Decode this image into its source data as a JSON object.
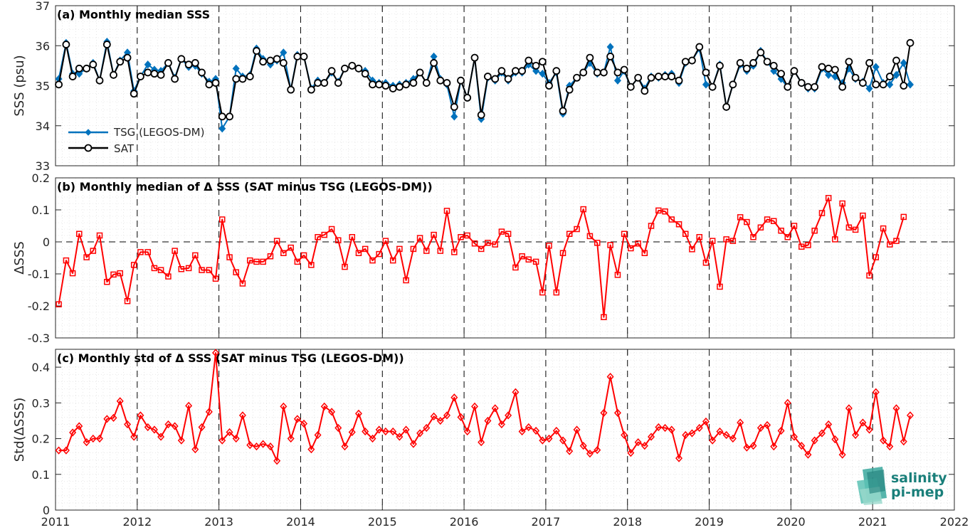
{
  "chart_data": [
    {
      "type": "line",
      "title": "(a) Monthly median SSS",
      "ylabel": "SSS (psu)",
      "xlim": [
        2011,
        2022
      ],
      "ylim": [
        33,
        37
      ],
      "xticks": [
        "2011",
        "2012",
        "2013",
        "2014",
        "2015",
        "2016",
        "2017",
        "2018",
        "2019",
        "2020",
        "2021",
        "2022"
      ],
      "yticks": [
        "33",
        "34",
        "35",
        "36",
        "37"
      ],
      "grid": true,
      "legend_position": "bottom-left",
      "x": [
        2011.04,
        2011.13,
        2011.21,
        2011.29,
        2011.38,
        2011.46,
        2011.54,
        2011.63,
        2011.71,
        2011.79,
        2011.88,
        2011.96,
        2012.04,
        2012.13,
        2012.21,
        2012.29,
        2012.38,
        2012.46,
        2012.54,
        2012.63,
        2012.71,
        2012.79,
        2012.88,
        2012.96,
        2013.04,
        2013.13,
        2013.21,
        2013.29,
        2013.38,
        2013.46,
        2013.54,
        2013.63,
        2013.71,
        2013.79,
        2013.88,
        2013.96,
        2014.04,
        2014.13,
        2014.21,
        2014.29,
        2014.38,
        2014.46,
        2014.54,
        2014.63,
        2014.71,
        2014.79,
        2014.88,
        2014.96,
        2015.04,
        2015.13,
        2015.21,
        2015.29,
        2015.38,
        2015.46,
        2015.54,
        2015.63,
        2015.71,
        2015.79,
        2015.88,
        2015.96,
        2016.04,
        2016.13,
        2016.21,
        2016.29,
        2016.38,
        2016.46,
        2016.54,
        2016.63,
        2016.71,
        2016.79,
        2016.88,
        2016.96,
        2017.04,
        2017.13,
        2017.21,
        2017.29,
        2017.38,
        2017.46,
        2017.54,
        2017.63,
        2017.71,
        2017.79,
        2017.88,
        2017.96,
        2018.04,
        2018.13,
        2018.21,
        2018.29,
        2018.38,
        2018.46,
        2018.54,
        2018.63,
        2018.71,
        2018.79,
        2018.88,
        2018.96,
        2019.04,
        2019.13,
        2019.21,
        2019.29,
        2019.38,
        2019.46,
        2019.54,
        2019.63,
        2019.71,
        2019.79,
        2019.88,
        2019.96,
        2020.04,
        2020.13,
        2020.21,
        2020.29,
        2020.38,
        2020.46,
        2020.54,
        2020.63,
        2020.71,
        2020.79,
        2020.88,
        2020.96,
        2021.04,
        2021.13,
        2021.21,
        2021.29,
        2021.38,
        2021.46
      ],
      "series": [
        {
          "name": "TSG (LEGOS-DM)",
          "color": "#0072BD",
          "marker": "diamond",
          "values": [
            35.17,
            36.07,
            35.3,
            35.3,
            35.43,
            35.57,
            35.13,
            36.1,
            35.27,
            35.63,
            35.83,
            34.87,
            35.23,
            35.53,
            35.4,
            35.37,
            35.57,
            35.2,
            35.67,
            35.47,
            35.5,
            35.3,
            35.1,
            35.17,
            33.93,
            34.23,
            35.43,
            35.23,
            35.27,
            35.93,
            35.67,
            35.53,
            35.63,
            35.83,
            34.9,
            35.77,
            35.73,
            34.93,
            35.13,
            35.07,
            35.33,
            35.1,
            35.43,
            35.5,
            35.43,
            35.37,
            35.13,
            35.07,
            35.07,
            35.0,
            35.03,
            35.07,
            35.17,
            35.33,
            35.07,
            35.73,
            35.17,
            35.03,
            34.23,
            35.13,
            34.7,
            35.7,
            34.17,
            35.2,
            35.13,
            35.33,
            35.13,
            35.33,
            35.33,
            35.53,
            35.37,
            35.3,
            35.07,
            35.33,
            34.3,
            35.0,
            35.2,
            35.33,
            35.57,
            35.3,
            35.33,
            35.97,
            35.13,
            35.37,
            34.97,
            35.2,
            34.93,
            35.23,
            35.2,
            35.27,
            35.3,
            35.07,
            35.57,
            35.63,
            35.93,
            35.03,
            34.97,
            35.53,
            34.47,
            35.03,
            35.53,
            35.37,
            35.5,
            35.87,
            35.6,
            35.37,
            35.17,
            34.97,
            35.37,
            35.07,
            34.93,
            34.93,
            35.43,
            35.27,
            35.23,
            35.07,
            35.43,
            35.17,
            35.1,
            34.93,
            35.47,
            35.07,
            35.03,
            35.27,
            35.57,
            35.03
          ]
        },
        {
          "name": "SAT",
          "color": "#000000",
          "marker": "circle",
          "values": [
            35.03,
            36.03,
            35.23,
            35.43,
            35.43,
            35.53,
            35.13,
            36.03,
            35.27,
            35.6,
            35.7,
            34.8,
            35.23,
            35.33,
            35.3,
            35.27,
            35.57,
            35.17,
            35.67,
            35.53,
            35.57,
            35.33,
            35.03,
            35.07,
            34.23,
            34.23,
            35.17,
            35.17,
            35.23,
            35.87,
            35.6,
            35.63,
            35.67,
            35.57,
            34.9,
            35.73,
            35.73,
            34.9,
            35.07,
            35.07,
            35.37,
            35.07,
            35.43,
            35.5,
            35.43,
            35.3,
            35.03,
            35.03,
            35.0,
            34.93,
            34.97,
            35.03,
            35.07,
            35.33,
            35.07,
            35.57,
            35.13,
            35.07,
            34.47,
            35.13,
            34.7,
            35.7,
            34.27,
            35.23,
            35.17,
            35.37,
            35.17,
            35.37,
            35.37,
            35.63,
            35.5,
            35.6,
            35.0,
            35.37,
            34.37,
            34.9,
            35.2,
            35.33,
            35.7,
            35.33,
            35.33,
            35.73,
            35.33,
            35.4,
            34.97,
            35.2,
            34.87,
            35.2,
            35.23,
            35.23,
            35.23,
            35.13,
            35.6,
            35.63,
            35.97,
            35.33,
            34.97,
            35.5,
            34.47,
            35.03,
            35.57,
            35.43,
            35.57,
            35.83,
            35.6,
            35.5,
            35.3,
            34.97,
            35.37,
            35.07,
            34.97,
            34.97,
            35.47,
            35.43,
            35.4,
            34.97,
            35.6,
            35.2,
            35.07,
            35.57,
            35.03,
            35.03,
            35.23,
            35.63,
            35.0,
            36.07
          ]
        }
      ]
    },
    {
      "type": "line",
      "title": "(b) Monthly median of Δ SSS (SAT minus TSG (LEGOS-DM))",
      "ylabel": "ΔSSS",
      "xlim": [
        2011,
        2022
      ],
      "ylim": [
        -0.3,
        0.2
      ],
      "xticks": [
        "2011",
        "2012",
        "2013",
        "2014",
        "2015",
        "2016",
        "2017",
        "2018",
        "2019",
        "2020",
        "2021",
        "2022"
      ],
      "yticks": [
        "-0.3",
        "-0.2",
        "-0.1",
        "0",
        "0.1",
        "0.2"
      ],
      "grid": true,
      "series": [
        {
          "name": "",
          "color": "#FF0000",
          "marker": "square",
          "values": [
            -0.195,
            -0.058,
            -0.098,
            0.025,
            -0.048,
            -0.028,
            0.02,
            -0.125,
            -0.102,
            -0.098,
            -0.185,
            -0.072,
            -0.032,
            -0.032,
            -0.082,
            -0.088,
            -0.108,
            -0.028,
            -0.085,
            -0.082,
            -0.042,
            -0.088,
            -0.088,
            -0.115,
            0.07,
            -0.048,
            -0.095,
            -0.13,
            -0.058,
            -0.062,
            -0.062,
            -0.045,
            0.003,
            -0.035,
            -0.018,
            -0.062,
            -0.042,
            -0.072,
            0.015,
            0.022,
            0.04,
            0.005,
            -0.078,
            0.015,
            -0.035,
            -0.022,
            -0.058,
            -0.038,
            0.003,
            -0.058,
            -0.022,
            -0.12,
            -0.022,
            0.012,
            -0.028,
            0.022,
            -0.028,
            0.097,
            -0.032,
            0.015,
            0.02,
            -0.005,
            -0.022,
            -0.003,
            -0.008,
            0.032,
            0.025,
            -0.08,
            -0.045,
            -0.055,
            -0.062,
            -0.158,
            -0.012,
            -0.158,
            -0.035,
            0.025,
            0.04,
            0.102,
            0.018,
            -0.003,
            -0.235,
            -0.01,
            -0.103,
            0.025,
            -0.02,
            -0.005,
            -0.035,
            0.05,
            0.098,
            0.095,
            0.07,
            0.055,
            0.025,
            -0.023,
            0.015,
            -0.065,
            0.003,
            -0.14,
            0.008,
            0.003,
            0.077,
            0.062,
            0.015,
            0.045,
            0.07,
            0.065,
            0.035,
            0.015,
            0.05,
            -0.015,
            -0.01,
            0.035,
            0.09,
            0.137,
            0.008,
            0.12,
            0.045,
            0.038,
            0.082,
            -0.105,
            -0.048,
            0.042,
            -0.008,
            0.003,
            0.078
          ]
        }
      ]
    },
    {
      "type": "line",
      "title": "(c) Monthly std of Δ SSS (SAT minus TSG (LEGOS-DM))",
      "ylabel": "Std(ΔSSS)",
      "xlim": [
        2011,
        2022
      ],
      "ylim": [
        0,
        0.45
      ],
      "xticks": [
        "2011",
        "2012",
        "2013",
        "2014",
        "2015",
        "2016",
        "2017",
        "2018",
        "2019",
        "2020",
        "2021",
        "2022"
      ],
      "yticks": [
        "0",
        "0.1",
        "0.2",
        "0.3",
        "0.4"
      ],
      "grid": true,
      "series": [
        {
          "name": "",
          "color": "#FF0000",
          "marker": "diamond",
          "values": [
            0.167,
            0.167,
            0.217,
            0.235,
            0.19,
            0.2,
            0.2,
            0.255,
            0.258,
            0.305,
            0.24,
            0.205,
            0.265,
            0.232,
            0.225,
            0.205,
            0.24,
            0.235,
            0.195,
            0.292,
            0.17,
            0.232,
            0.275,
            0.44,
            0.195,
            0.218,
            0.2,
            0.265,
            0.182,
            0.178,
            0.185,
            0.178,
            0.138,
            0.29,
            0.2,
            0.255,
            0.242,
            0.17,
            0.21,
            0.29,
            0.275,
            0.23,
            0.178,
            0.218,
            0.27,
            0.22,
            0.2,
            0.225,
            0.22,
            0.22,
            0.205,
            0.225,
            0.185,
            0.215,
            0.23,
            0.262,
            0.25,
            0.265,
            0.315,
            0.26,
            0.22,
            0.29,
            0.19,
            0.25,
            0.285,
            0.24,
            0.265,
            0.33,
            0.22,
            0.232,
            0.222,
            0.195,
            0.2,
            0.222,
            0.195,
            0.165,
            0.225,
            0.18,
            0.158,
            0.168,
            0.272,
            0.373,
            0.272,
            0.21,
            0.16,
            0.19,
            0.18,
            0.205,
            0.232,
            0.23,
            0.225,
            0.145,
            0.21,
            0.215,
            0.23,
            0.248,
            0.195,
            0.22,
            0.21,
            0.2,
            0.245,
            0.175,
            0.18,
            0.23,
            0.238,
            0.178,
            0.222,
            0.3,
            0.205,
            0.18,
            0.155,
            0.195,
            0.215,
            0.24,
            0.198,
            0.155,
            0.285,
            0.21,
            0.245,
            0.225,
            0.33,
            0.195,
            0.178,
            0.285,
            0.192,
            0.265
          ]
        }
      ]
    }
  ],
  "logo": {
    "line1": "salinity",
    "line2": "pi-mep",
    "color": "#1a7f7a"
  }
}
